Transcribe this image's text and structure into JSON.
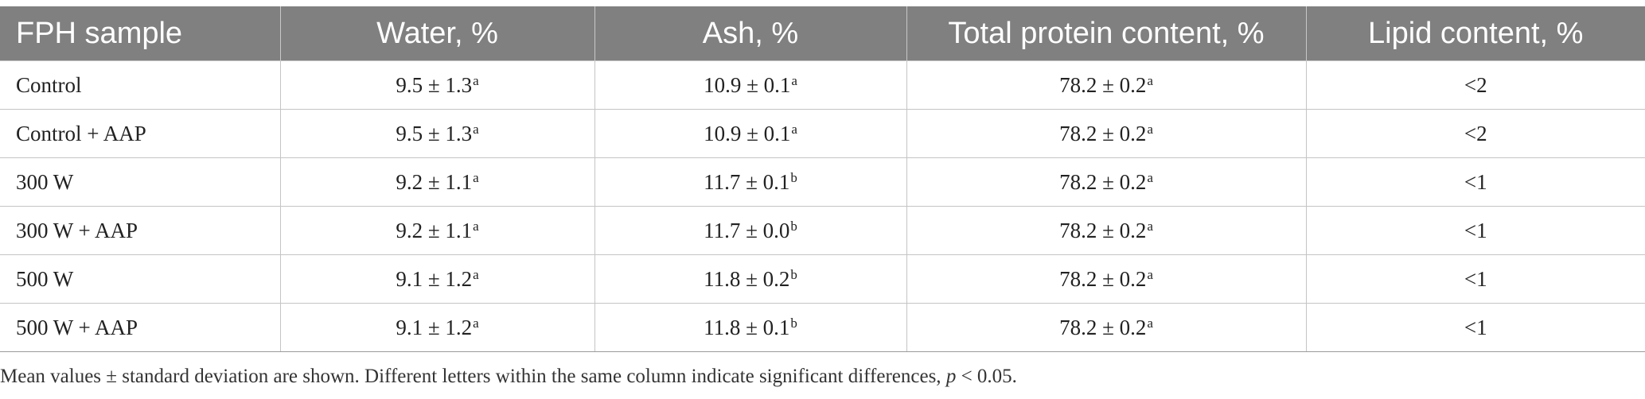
{
  "table": {
    "headers": [
      "FPH sample",
      "Water, %",
      "Ash, %",
      "Total protein content, %",
      "Lipid content, %"
    ],
    "rows": [
      {
        "sample": "Control",
        "water": "9.5 ± 1.3",
        "water_sup": "a",
        "ash": "10.9 ± 0.1",
        "ash_sup": "a",
        "protein": "78.2 ± 0.2",
        "protein_sup": "a",
        "lipid": "<2"
      },
      {
        "sample": "Control + AAP",
        "water": "9.5 ± 1.3",
        "water_sup": "a",
        "ash": "10.9 ± 0.1",
        "ash_sup": "a",
        "protein": "78.2 ± 0.2",
        "protein_sup": "a",
        "lipid": "<2"
      },
      {
        "sample": "300 W",
        "water": "9.2 ± 1.1",
        "water_sup": "a",
        "ash": "11.7 ± 0.1",
        "ash_sup": "b",
        "protein": "78.2 ± 0.2",
        "protein_sup": "a",
        "lipid": "<1"
      },
      {
        "sample": "300 W + AAP",
        "water": "9.2 ± 1.1",
        "water_sup": "a",
        "ash": "11.7 ± 0.0",
        "ash_sup": "b",
        "protein": "78.2 ± 0.2",
        "protein_sup": "a",
        "lipid": "<1"
      },
      {
        "sample": "500 W",
        "water": "9.1 ± 1.2",
        "water_sup": "a",
        "ash": "11.8 ± 0.2",
        "ash_sup": "b",
        "protein": "78.2 ± 0.2",
        "protein_sup": "a",
        "lipid": "<1"
      },
      {
        "sample": "500 W + AAP",
        "water": "9.1 ± 1.2",
        "water_sup": "a",
        "ash": "11.8 ± 0.1",
        "ash_sup": "b",
        "protein": "78.2 ± 0.2",
        "protein_sup": "a",
        "lipid": "<1"
      }
    ]
  },
  "footnote": {
    "text_before": "Mean values ± standard deviation are shown. Different letters within the same column indicate significant differences, ",
    "p_symbol": "p",
    "text_after": " < 0.05."
  }
}
